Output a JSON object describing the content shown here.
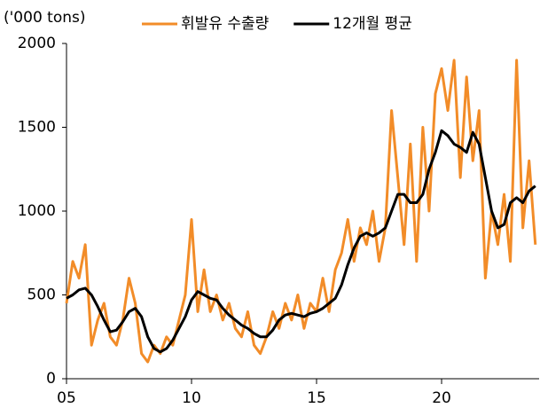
{
  "chart_data": {
    "type": "line",
    "y_label": "('000 tons)",
    "x": [
      5,
      5.25,
      5.5,
      5.75,
      6,
      6.25,
      6.5,
      6.75,
      7,
      7.25,
      7.5,
      7.75,
      8,
      8.25,
      8.5,
      8.75,
      9,
      9.25,
      9.5,
      9.75,
      10,
      10.25,
      10.5,
      10.75,
      11,
      11.25,
      11.5,
      11.75,
      12,
      12.25,
      12.5,
      12.75,
      13,
      13.25,
      13.5,
      13.75,
      14,
      14.25,
      14.5,
      14.75,
      15,
      15.25,
      15.5,
      15.75,
      16,
      16.25,
      16.5,
      16.75,
      17,
      17.25,
      17.5,
      17.75,
      18,
      18.25,
      18.5,
      18.75,
      19,
      19.25,
      19.5,
      19.75,
      20,
      20.25,
      20.5,
      20.75,
      21,
      21.25,
      21.5,
      21.75,
      22,
      22.25,
      22.5,
      22.75,
      23,
      23.25,
      23.5,
      23.75
    ],
    "series": [
      {
        "name": "휘발유 수출량",
        "color": "#f28c28",
        "width": 3,
        "values": [
          450,
          700,
          600,
          800,
          200,
          350,
          450,
          250,
          200,
          350,
          600,
          450,
          150,
          100,
          200,
          150,
          250,
          200,
          350,
          500,
          950,
          400,
          650,
          400,
          500,
          350,
          450,
          300,
          250,
          400,
          200,
          150,
          250,
          400,
          300,
          450,
          350,
          500,
          300,
          450,
          400,
          600,
          400,
          650,
          750,
          950,
          700,
          900,
          800,
          1000,
          700,
          900,
          1600,
          1200,
          800,
          1400,
          700,
          1500,
          1000,
          1700,
          1850,
          1600,
          1900,
          1200,
          1800,
          1300,
          1600,
          600,
          1000,
          800,
          1100,
          700,
          1900,
          900,
          1300,
          800
        ]
      },
      {
        "name": "12개월 평균",
        "color": "#000000",
        "width": 3,
        "values": [
          480,
          500,
          530,
          540,
          500,
          430,
          350,
          280,
          290,
          340,
          400,
          420,
          370,
          250,
          180,
          160,
          180,
          230,
          300,
          370,
          470,
          520,
          500,
          480,
          470,
          420,
          380,
          350,
          320,
          300,
          270,
          250,
          250,
          290,
          350,
          380,
          390,
          380,
          370,
          390,
          400,
          420,
          450,
          480,
          560,
          680,
          780,
          850,
          870,
          850,
          870,
          900,
          1000,
          1100,
          1100,
          1050,
          1050,
          1100,
          1250,
          1350,
          1480,
          1450,
          1400,
          1380,
          1350,
          1470,
          1400,
          1200,
          1000,
          900,
          920,
          1050,
          1080,
          1050,
          1120,
          1150
        ]
      }
    ],
    "xlim": [
      5,
      23.9
    ],
    "xticks": [
      {
        "value": 5,
        "label": "05"
      },
      10,
      15,
      20
    ],
    "ylim": [
      0,
      2000
    ],
    "yticks": [
      0,
      500,
      1000,
      1500,
      2000
    ],
    "grid": false,
    "legend": "top"
  }
}
